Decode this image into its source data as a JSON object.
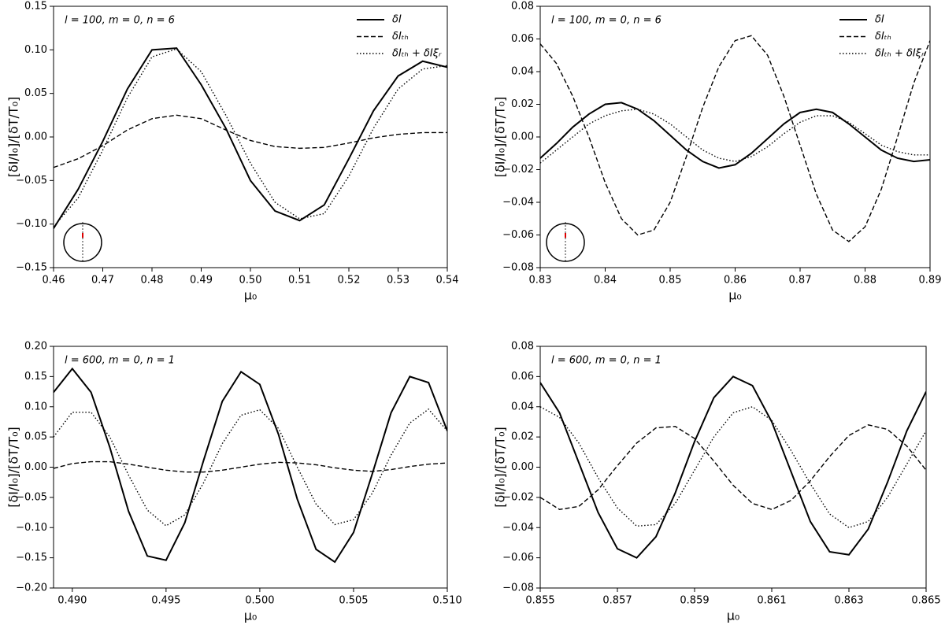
{
  "chart_data": [
    {
      "type": "line",
      "annotation": "l = 100, m = 0, n = 6",
      "xlabel": "μ₀",
      "ylabel": "[δI/I₀]/[δT/T₀]",
      "legend": "upper right",
      "x": [
        0.46,
        0.465,
        0.47,
        0.475,
        0.48,
        0.485,
        0.49,
        0.495,
        0.5,
        0.505,
        0.51,
        0.515,
        0.52,
        0.525,
        0.53,
        0.535,
        0.54
      ],
      "series": [
        {
          "name": "δI",
          "color": "#000000",
          "dash": "solid",
          "values": [
            -0.105,
            -0.06,
            -0.005,
            0.055,
            0.1,
            0.102,
            0.06,
            0.01,
            -0.05,
            -0.085,
            -0.096,
            -0.078,
            -0.025,
            0.03,
            0.07,
            0.087,
            0.08
          ]
        },
        {
          "name": "δIₜₕ",
          "color": "#000000",
          "dash": "dashed",
          "values": [
            -0.035,
            -0.025,
            -0.01,
            0.008,
            0.021,
            0.025,
            0.021,
            0.008,
            -0.004,
            -0.011,
            -0.013,
            -0.012,
            -0.007,
            -0.001,
            0.003,
            0.005,
            0.005
          ]
        },
        {
          "name": "δIₜₕ + δIξᵣ",
          "color": "#000000",
          "dash": "dotted",
          "values": [
            -0.103,
            -0.07,
            -0.015,
            0.045,
            0.092,
            0.101,
            0.075,
            0.025,
            -0.03,
            -0.075,
            -0.094,
            -0.088,
            -0.045,
            0.01,
            0.055,
            0.078,
            0.082
          ]
        }
      ],
      "xlim": [
        0.46,
        0.54
      ],
      "xticks": [
        0.46,
        0.47,
        0.48,
        0.49,
        {
          "value": 0.5,
          "label": "0.50"
        },
        0.51,
        0.52,
        0.53,
        0.54
      ],
      "ylim": [
        -0.15,
        0.15
      ],
      "yticks": [
        {
          "value": -0.15,
          "label": "−0.15"
        },
        {
          "value": -0.1,
          "label": "−0.10"
        },
        {
          "value": -0.05,
          "label": "−0.05"
        },
        {
          "value": 0,
          "label": "0.00"
        },
        0.05,
        {
          "value": 0.1,
          "label": "0.10"
        },
        0.15
      ]
    },
    {
      "type": "line",
      "annotation": "l = 100, m = 0, n = 6",
      "xlabel": "μ₀",
      "ylabel": "[δI/I₀]/[δT/T₀]",
      "legend": "upper right",
      "x": [
        0.83,
        0.8325,
        0.835,
        0.8375,
        0.84,
        0.8425,
        0.845,
        0.8475,
        0.85,
        0.8525,
        0.855,
        0.8575,
        0.86,
        0.8625,
        0.865,
        0.8675,
        0.87,
        0.8725,
        0.875,
        0.8775,
        0.88,
        0.8825,
        0.885,
        0.8875,
        0.89
      ],
      "series": [
        {
          "name": "δI",
          "color": "#000000",
          "dash": "solid",
          "values": [
            -0.013,
            -0.004,
            0.006,
            0.014,
            0.02,
            0.021,
            0.017,
            0.01,
            0.001,
            -0.008,
            -0.015,
            -0.019,
            -0.017,
            -0.01,
            -0.001,
            0.008,
            0.015,
            0.017,
            0.015,
            0.008,
            0.0,
            -0.008,
            -0.013,
            -0.015,
            -0.014
          ]
        },
        {
          "name": "δIₜₕ",
          "color": "#000000",
          "dash": "dashed",
          "values": [
            0.057,
            0.045,
            0.025,
            0.0,
            -0.028,
            -0.05,
            -0.06,
            -0.057,
            -0.04,
            -0.012,
            0.018,
            0.043,
            0.059,
            0.062,
            0.05,
            0.025,
            -0.005,
            -0.035,
            -0.057,
            -0.064,
            -0.055,
            -0.032,
            0.0,
            0.033,
            0.059
          ]
        },
        {
          "name": "δIₜₕ + δIξᵣ",
          "color": "#000000",
          "dash": "dotted",
          "values": [
            -0.016,
            -0.008,
            0.0,
            0.008,
            0.013,
            0.016,
            0.017,
            0.014,
            0.008,
            0.0,
            -0.008,
            -0.013,
            -0.015,
            -0.012,
            -0.006,
            0.002,
            0.009,
            0.013,
            0.013,
            0.009,
            0.002,
            -0.005,
            -0.009,
            -0.011,
            -0.011
          ]
        }
      ],
      "xlim": [
        0.83,
        0.89
      ],
      "xticks": [
        0.83,
        0.84,
        0.85,
        0.86,
        0.87,
        0.88,
        0.89
      ],
      "ylim": [
        -0.08,
        0.08
      ],
      "yticks": [
        {
          "value": -0.08,
          "label": "−0.08"
        },
        {
          "value": -0.06,
          "label": "−0.06"
        },
        {
          "value": -0.04,
          "label": "−0.04"
        },
        {
          "value": -0.02,
          "label": "−0.02"
        },
        {
          "value": 0,
          "label": "0.00"
        },
        0.02,
        0.04,
        0.06,
        0.08
      ]
    },
    {
      "type": "line",
      "annotation": "l = 600, m = 0, n = 1",
      "xlabel": "μ₀",
      "ylabel": "[δI/I₀]/[δT/T₀]",
      "x": [
        0.489,
        0.49,
        0.491,
        0.492,
        0.493,
        0.494,
        0.495,
        0.496,
        0.497,
        0.498,
        0.499,
        0.5,
        0.501,
        0.502,
        0.503,
        0.504,
        0.505,
        0.506,
        0.507,
        0.508,
        0.509,
        0.51
      ],
      "series": [
        {
          "color": "#000000",
          "dash": "solid",
          "values": [
            0.124,
            0.163,
            0.124,
            0.033,
            -0.073,
            -0.147,
            -0.154,
            -0.092,
            0.011,
            0.109,
            0.158,
            0.137,
            0.054,
            -0.053,
            -0.136,
            -0.157,
            -0.108,
            -0.011,
            0.09,
            0.15,
            0.14,
            0.06
          ]
        },
        {
          "color": "#000000",
          "dash": "dashed",
          "values": [
            -0.002,
            0.006,
            0.009,
            0.009,
            0.005,
            0.0,
            -0.005,
            -0.008,
            -0.008,
            -0.005,
            0.0,
            0.005,
            0.008,
            0.007,
            0.004,
            -0.001,
            -0.005,
            -0.007,
            -0.004,
            0.001,
            0.005,
            0.007
          ]
        },
        {
          "color": "#000000",
          "dash": "dotted",
          "values": [
            0.05,
            0.091,
            0.091,
            0.05,
            -0.013,
            -0.071,
            -0.097,
            -0.079,
            -0.026,
            0.039,
            0.086,
            0.095,
            0.064,
            0.0,
            -0.061,
            -0.095,
            -0.087,
            -0.043,
            0.02,
            0.073,
            0.096,
            0.06
          ]
        }
      ],
      "xlim": [
        0.489,
        0.51
      ],
      "xticks": [
        {
          "value": 0.49,
          "label": "0.490"
        },
        0.495,
        {
          "value": 0.5,
          "label": "0.500"
        },
        0.505,
        {
          "value": 0.51,
          "label": "0.510"
        }
      ],
      "ylim": [
        -0.2,
        0.2
      ],
      "yticks": [
        {
          "value": -0.2,
          "label": "−0.20"
        },
        {
          "value": -0.15,
          "label": "−0.15"
        },
        {
          "value": -0.1,
          "label": "−0.10"
        },
        {
          "value": -0.05,
          "label": "−0.05"
        },
        {
          "value": 0,
          "label": "0.00"
        },
        0.05,
        {
          "value": 0.1,
          "label": "0.10"
        },
        0.15,
        {
          "value": 0.2,
          "label": "0.20"
        }
      ]
    },
    {
      "type": "line",
      "annotation": "l = 600, m = 0, n = 1",
      "xlabel": "μ₀",
      "ylabel": "[δI/I₀]/[δT/T₀]",
      "x": [
        0.855,
        0.8555,
        0.856,
        0.8565,
        0.857,
        0.8575,
        0.858,
        0.8585,
        0.859,
        0.8595,
        0.86,
        0.8605,
        0.861,
        0.8615,
        0.862,
        0.8625,
        0.863,
        0.8635,
        0.864,
        0.8645,
        0.865
      ],
      "series": [
        {
          "color": "#000000",
          "dash": "solid",
          "values": [
            0.056,
            0.036,
            0.003,
            -0.03,
            -0.054,
            -0.06,
            -0.046,
            -0.017,
            0.017,
            0.046,
            0.06,
            0.054,
            0.03,
            -0.003,
            -0.036,
            -0.056,
            -0.058,
            -0.041,
            -0.01,
            0.024,
            0.05
          ]
        },
        {
          "color": "#000000",
          "dash": "dashed",
          "values": [
            -0.02,
            -0.028,
            -0.026,
            -0.015,
            0.001,
            0.016,
            0.026,
            0.027,
            0.019,
            0.004,
            -0.012,
            -0.024,
            -0.028,
            -0.022,
            -0.009,
            0.007,
            0.021,
            0.028,
            0.025,
            0.014,
            -0.002
          ]
        },
        {
          "color": "#000000",
          "dash": "dotted",
          "values": [
            0.04,
            0.033,
            0.016,
            -0.007,
            -0.027,
            -0.039,
            -0.038,
            -0.024,
            -0.002,
            0.02,
            0.036,
            0.04,
            0.031,
            0.011,
            -0.011,
            -0.031,
            -0.04,
            -0.036,
            -0.02,
            0.002,
            0.024
          ]
        }
      ],
      "xlim": [
        0.855,
        0.865
      ],
      "xticks": [
        0.855,
        0.857,
        0.859,
        0.861,
        0.863,
        0.865
      ],
      "ylim": [
        -0.08,
        0.08
      ],
      "yticks": [
        {
          "value": -0.08,
          "label": "−0.08"
        },
        {
          "value": -0.06,
          "label": "−0.06"
        },
        {
          "value": -0.04,
          "label": "−0.04"
        },
        {
          "value": -0.02,
          "label": "−0.02"
        },
        {
          "value": 0,
          "label": "0.00"
        },
        0.02,
        0.04,
        0.06,
        0.08
      ]
    }
  ]
}
